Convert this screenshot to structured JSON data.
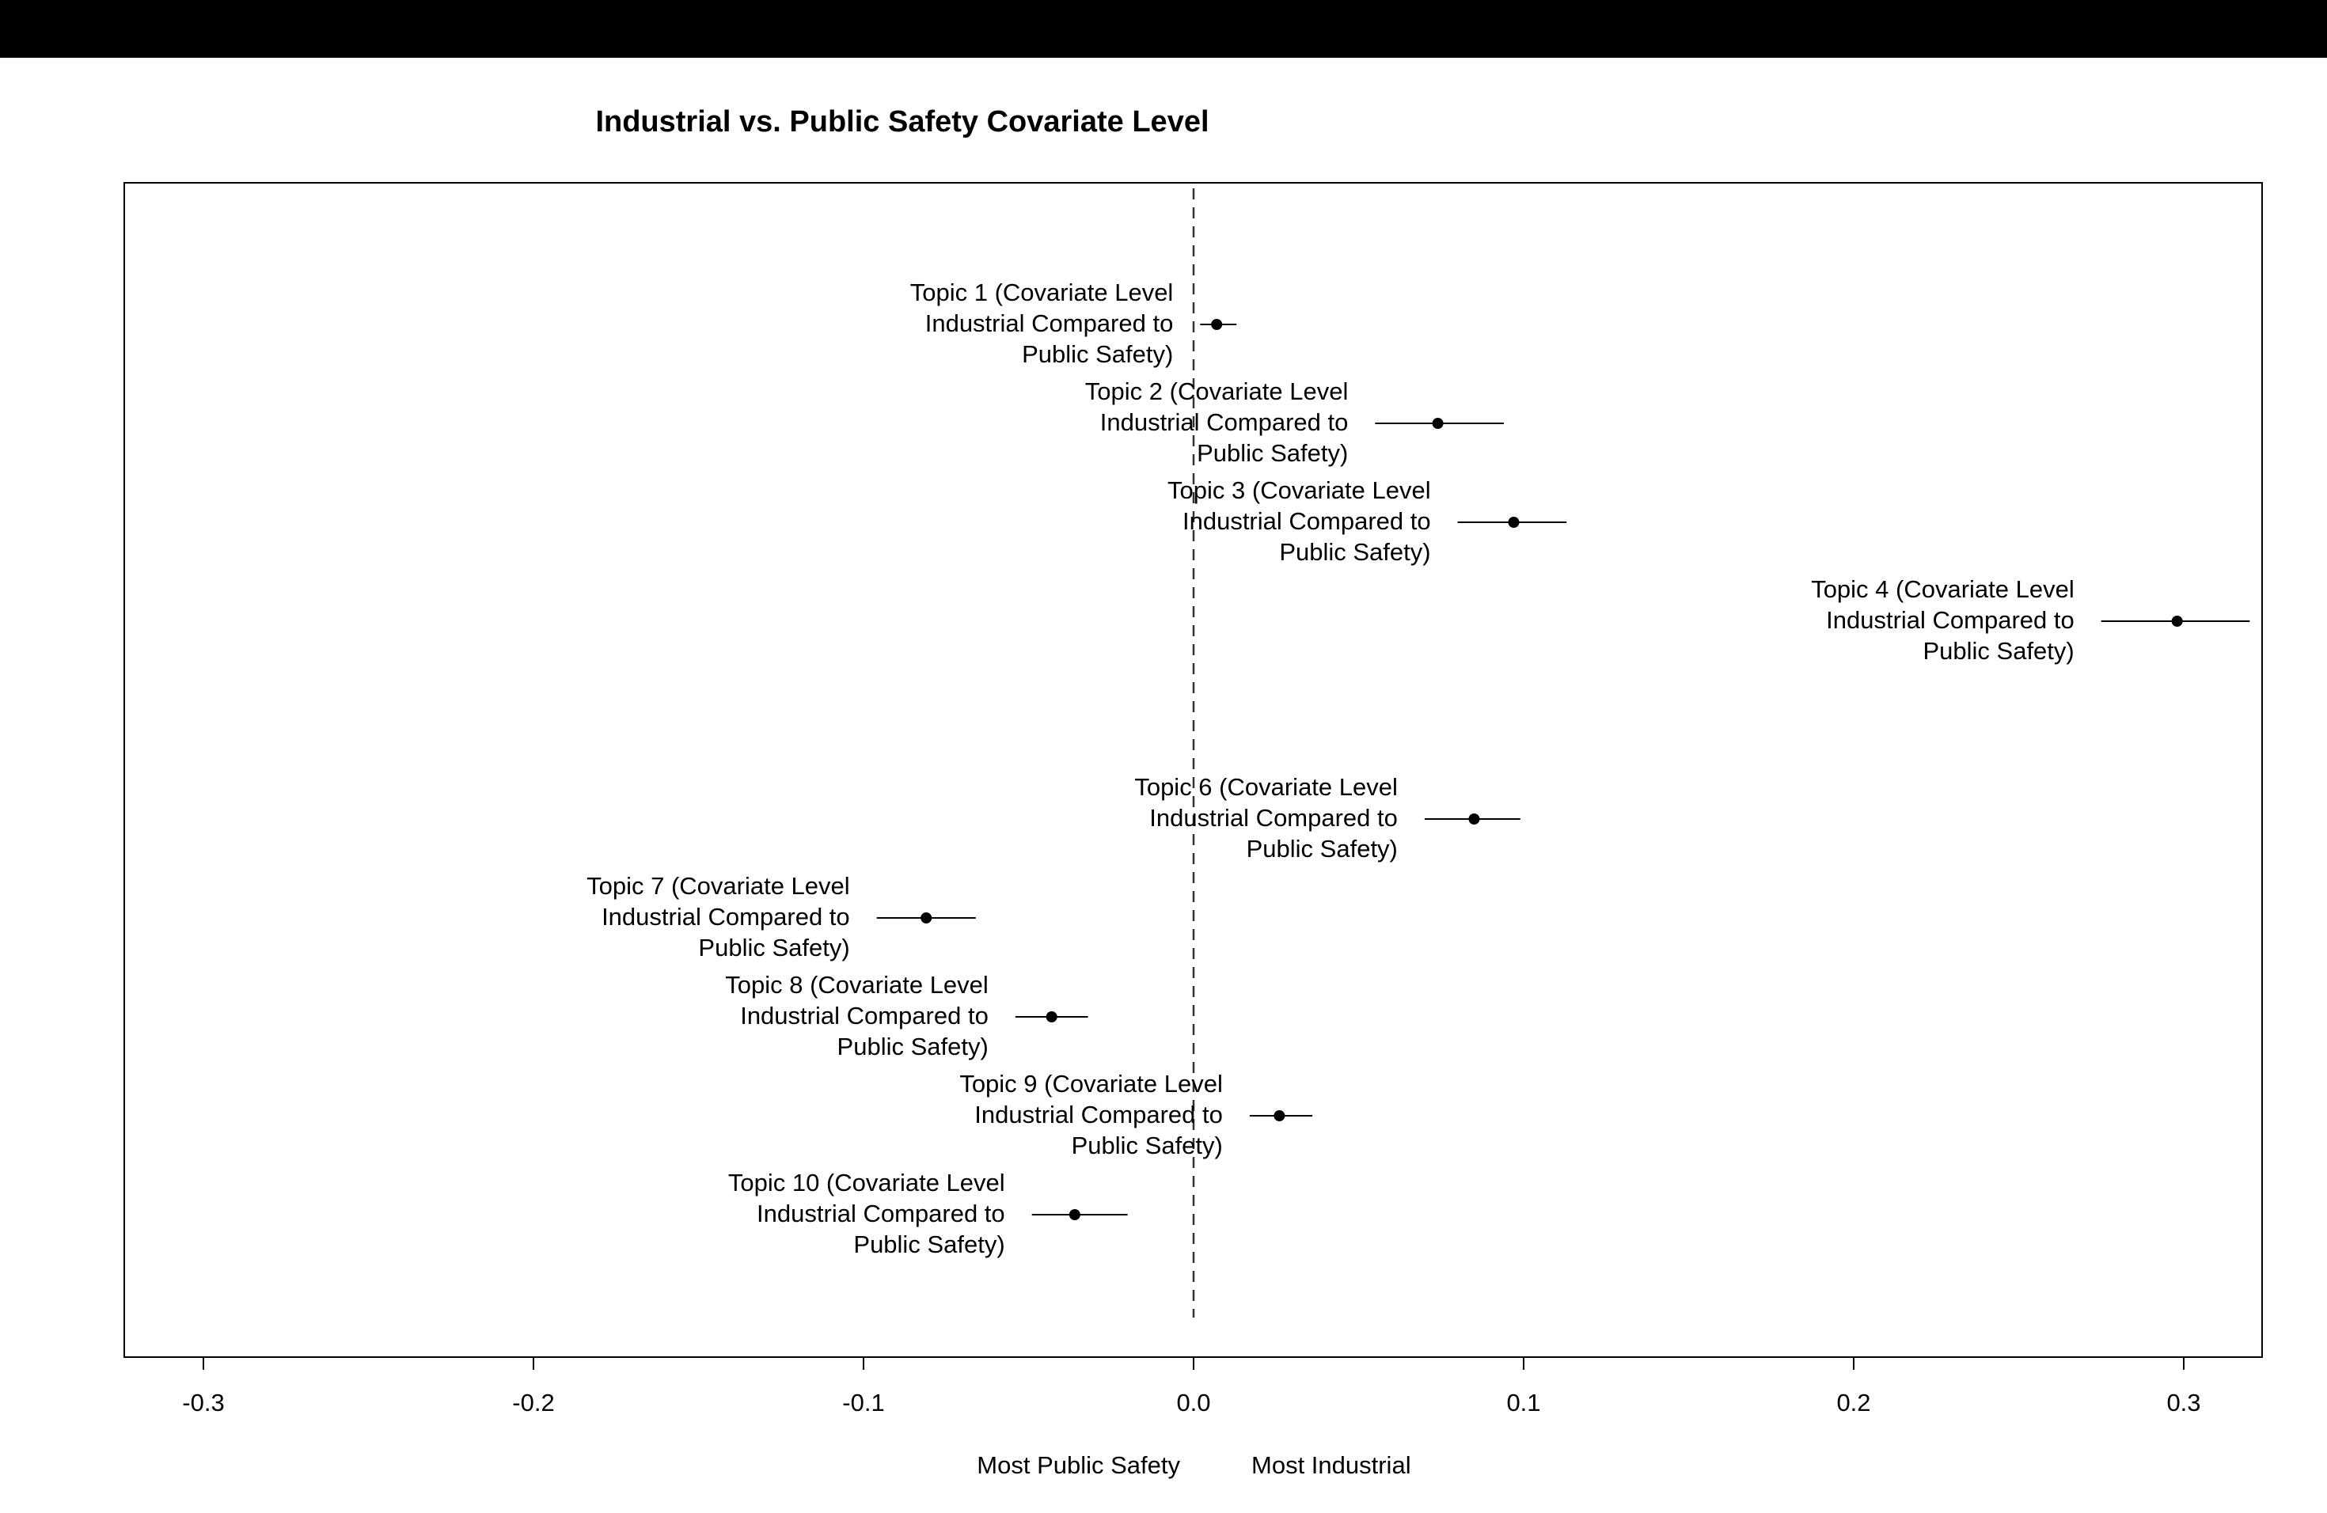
{
  "chart_data": {
    "type": "scatter",
    "title": "Industrial vs. Public Safety Covariate Level",
    "xlabel": "",
    "ylabel": "",
    "xlim": [
      -0.324,
      0.324
    ],
    "x_ticks": [
      "-0.3",
      "-0.2",
      "-0.1",
      "0.0",
      "0.1",
      "0.2",
      "0.3"
    ],
    "x_tick_values": [
      -0.3,
      -0.2,
      -0.1,
      0.0,
      0.1,
      0.2,
      0.3
    ],
    "reference_line_x": 0.0,
    "axis_annotations": {
      "left": "Most Public Safety",
      "right": "Most Industrial"
    },
    "points": [
      {
        "label": [
          "Topic 1 (Covariate Level",
          "Industrial Compared to",
          "Public Safety)"
        ],
        "estimate": 0.007,
        "lower": 0.002,
        "upper": 0.013
      },
      {
        "label": [
          "Topic 2 (Covariate Level",
          "Industrial Compared to",
          "Public Safety)"
        ],
        "estimate": 0.074,
        "lower": 0.055,
        "upper": 0.094
      },
      {
        "label": [
          "Topic 3 (Covariate Level",
          "Industrial Compared to",
          "Public Safety)"
        ],
        "estimate": 0.097,
        "lower": 0.08,
        "upper": 0.113
      },
      {
        "label": [
          "Topic 4 (Covariate Level",
          "Industrial Compared to",
          "Public Safety)"
        ],
        "estimate": 0.298,
        "lower": 0.275,
        "upper": 0.32
      },
      {
        "label": [
          "Topic 6 (Covariate Level",
          "Industrial Compared to",
          "Public Safety)"
        ],
        "estimate": 0.085,
        "lower": 0.07,
        "upper": 0.099
      },
      {
        "label": [
          "Topic 7 (Covariate Level",
          "Industrial Compared to",
          "Public Safety)"
        ],
        "estimate": -0.081,
        "lower": -0.096,
        "upper": -0.066
      },
      {
        "label": [
          "Topic 8 (Covariate Level",
          "Industrial Compared to",
          "Public Safety)"
        ],
        "estimate": -0.043,
        "lower": -0.054,
        "upper": -0.032
      },
      {
        "label": [
          "Topic 9 (Covariate Level",
          "Industrial Compared to",
          "Public Safety)"
        ],
        "estimate": 0.026,
        "lower": 0.017,
        "upper": 0.036
      },
      {
        "label": [
          "Topic 10 (Covariate Level",
          "Industrial Compared to",
          "Public Safety)"
        ],
        "estimate": -0.036,
        "lower": -0.049,
        "upper": -0.02
      }
    ],
    "grid": false,
    "legend": "none"
  }
}
